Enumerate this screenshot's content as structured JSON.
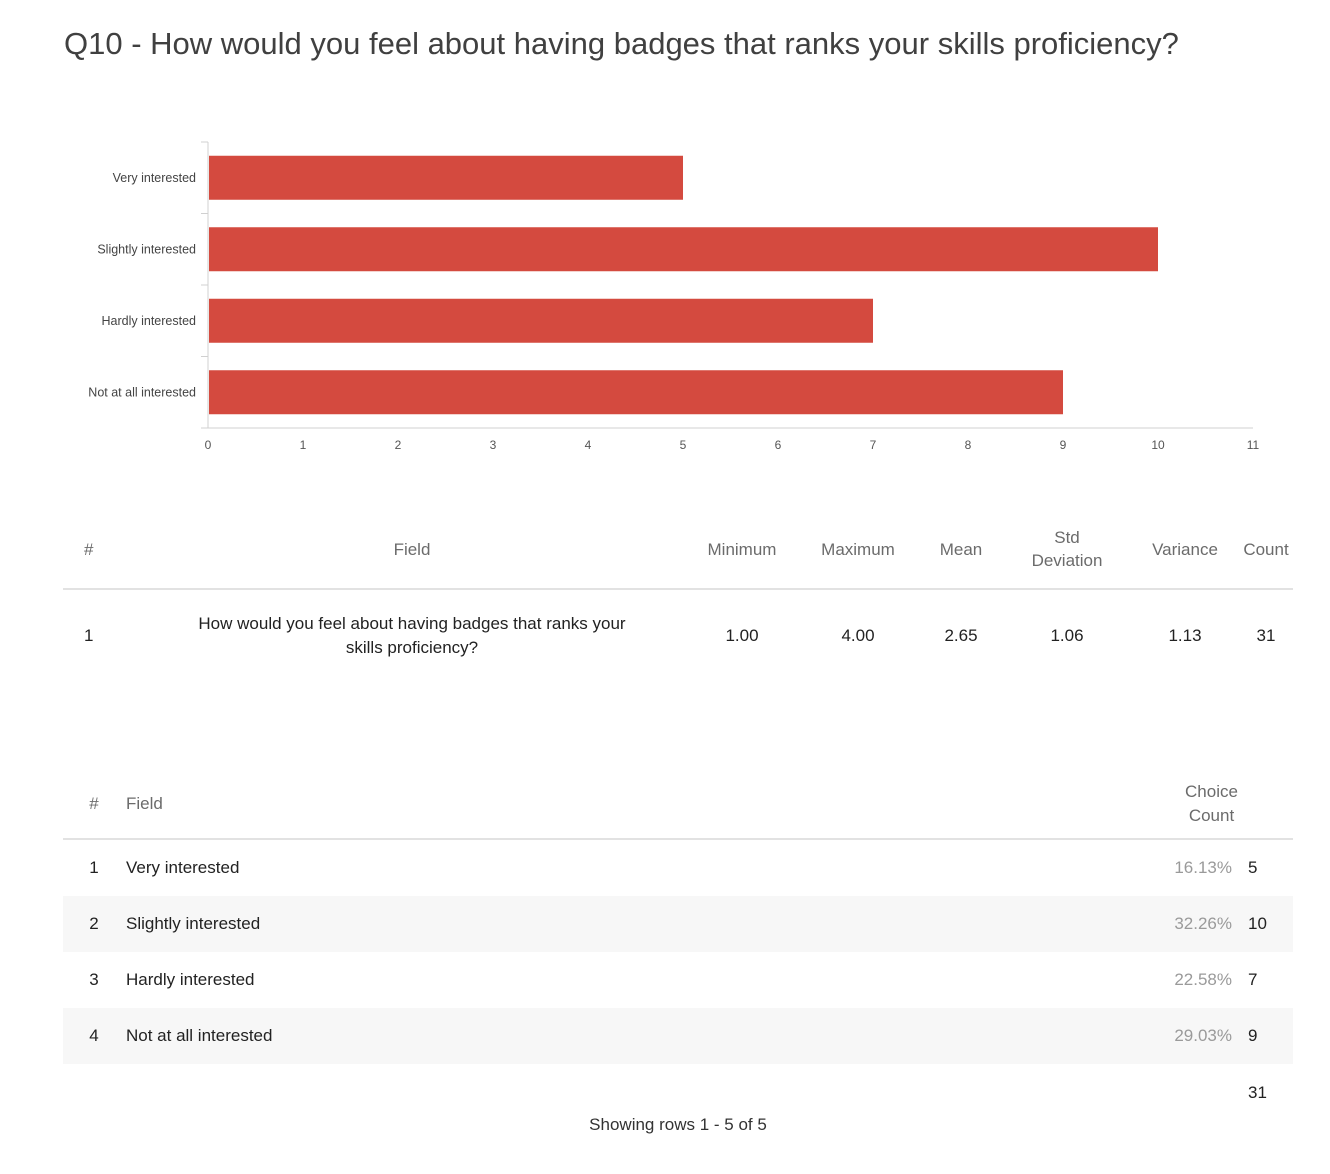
{
  "title": "Q10 - How would you feel about having badges that ranks your skills proficiency?",
  "chart_data": {
    "type": "bar",
    "orientation": "horizontal",
    "categories": [
      "Very interested",
      "Slightly interested",
      "Hardly interested",
      "Not at all interested"
    ],
    "values": [
      5,
      10,
      7,
      9
    ],
    "xlim": [
      0,
      11
    ],
    "xticks": [
      "0",
      "1",
      "2",
      "3",
      "4",
      "5",
      "6",
      "7",
      "8",
      "9",
      "10",
      "11"
    ],
    "bar_color": "#d44a3f",
    "grid": false
  },
  "stats_table": {
    "headers": {
      "num": "#",
      "field": "Field",
      "minimum": "Minimum",
      "maximum": "Maximum",
      "mean": "Mean",
      "std_line1": "Std",
      "std_line2": "Deviation",
      "variance": "Variance",
      "count": "Count"
    },
    "row": {
      "num": "1",
      "field": "How would you feel about having badges that ranks your skills proficiency?",
      "minimum": "1.00",
      "maximum": "4.00",
      "mean": "2.65",
      "std": "1.06",
      "variance": "1.13",
      "count": "31"
    }
  },
  "choice_table": {
    "headers": {
      "num": "#",
      "field": "Field",
      "choice_line1": "Choice",
      "choice_line2": "Count"
    },
    "rows": [
      {
        "num": "1",
        "field": "Very interested",
        "pct": "16.13%",
        "count": "5"
      },
      {
        "num": "2",
        "field": "Slightly interested",
        "pct": "32.26%",
        "count": "10"
      },
      {
        "num": "3",
        "field": "Hardly interested",
        "pct": "22.58%",
        "count": "7"
      },
      {
        "num": "4",
        "field": "Not at all interested",
        "pct": "29.03%",
        "count": "9"
      }
    ],
    "total": "31"
  },
  "footer": "Showing rows 1 - 5 of 5"
}
